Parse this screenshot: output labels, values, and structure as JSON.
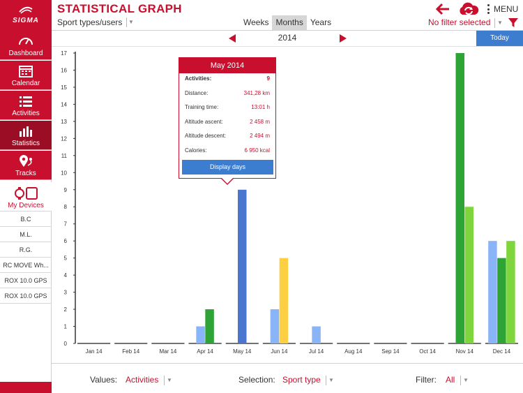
{
  "app": {
    "logo_text": "SIGMA",
    "title": "STATISTICAL GRAPH",
    "menu_label": "MENU"
  },
  "icons": {
    "back": "arrow-left-icon",
    "sync": "cloud-sync-icon",
    "menu": "vertical-dots-icon",
    "filter": "funnel-icon",
    "dashboard": "speedometer-icon",
    "calendar": "calendar-icon",
    "activities": "list-icon",
    "statistics": "bar-chart-icon",
    "tracks": "map-pin-icon",
    "devices": "watch-device-icon"
  },
  "colors": {
    "brand": "#c8102e",
    "accent_blue": "#3c7dd0",
    "bar_blue_light": "#8ab4f8",
    "bar_blue": "#4a76cf",
    "bar_green": "#2ea336",
    "bar_green_light": "#7fd63c",
    "bar_yellow": "#fdd044"
  },
  "sidebar": {
    "nav": [
      {
        "label": "Dashboard"
      },
      {
        "label": "Calendar"
      },
      {
        "label": "Activities"
      },
      {
        "label": "Statistics"
      },
      {
        "label": "Tracks"
      }
    ],
    "devices_label": "My Devices",
    "devices": [
      "B.C",
      "M.L.",
      "R.G.",
      "RC MOVE Wh...",
      "ROX 10.0 GPS",
      "ROX 10.0 GPS"
    ]
  },
  "toolbar": {
    "sport_users": "Sport types/users",
    "tabs": [
      {
        "label": "Weeks",
        "selected": false
      },
      {
        "label": "Months",
        "selected": true
      },
      {
        "label": "Years",
        "selected": false
      }
    ],
    "filter_value": "No filter selected"
  },
  "year_nav": {
    "year": "2014",
    "today": "Today"
  },
  "tooltip": {
    "title": "May 2014",
    "rows": [
      {
        "key": "Activities:",
        "value": "9"
      },
      {
        "key": "Distance:",
        "value": "341,28 km"
      },
      {
        "key": "Training time:",
        "value": "13:01 h"
      },
      {
        "key": "Altitude ascent:",
        "value": "2 458 m"
      },
      {
        "key": "Altitude descent:",
        "value": "2 494 m"
      },
      {
        "key": "Calories:",
        "value": "6 950 kcal"
      }
    ],
    "button": "Display days"
  },
  "bottom": {
    "values_label": "Values:",
    "values_value": "Activities",
    "selection_label": "Selection:",
    "selection_value": "Sport type",
    "filter_label": "Filter:",
    "filter_value": "All"
  },
  "chart_data": {
    "type": "bar",
    "categories": [
      "Jan 14",
      "Feb 14",
      "Mar 14",
      "Apr 14",
      "May 14",
      "Jun 14",
      "Jul 14",
      "Aug 14",
      "Sep 14",
      "Oct 14",
      "Nov 14",
      "Dec 14"
    ],
    "ylim": [
      0,
      17
    ],
    "yticks": [
      0,
      1,
      2,
      3,
      4,
      5,
      6,
      7,
      8,
      9,
      10,
      11,
      12,
      13,
      14,
      15,
      16,
      17
    ],
    "grid": false,
    "series": [
      {
        "color": "#8ab4f8",
        "values": [
          0,
          0,
          0,
          1,
          0,
          2,
          1,
          0,
          0,
          0,
          0,
          6
        ]
      },
      {
        "color": "#4a76cf",
        "values": [
          0,
          0,
          0,
          0,
          9,
          0,
          0,
          0,
          0,
          0,
          0,
          0
        ]
      },
      {
        "color": "#2ea336",
        "values": [
          0,
          0,
          0,
          2,
          0,
          0,
          0,
          0,
          0,
          0,
          17,
          5
        ]
      },
      {
        "color": "#7fd63c",
        "values": [
          0,
          0,
          0,
          0,
          0,
          0,
          0,
          0,
          0,
          0,
          8,
          6
        ]
      },
      {
        "color": "#fdd044",
        "values": [
          0,
          0,
          0,
          0,
          0,
          5,
          0,
          0,
          0,
          0,
          0,
          0
        ]
      }
    ]
  }
}
